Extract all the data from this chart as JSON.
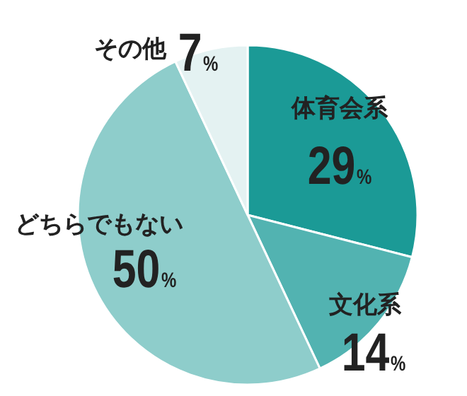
{
  "chart_data": {
    "type": "pie",
    "categories": [
      "体育会系",
      "文化系",
      "どちらでもない",
      "その他"
    ],
    "values": [
      29,
      14,
      50,
      7
    ],
    "value_labels": [
      "29%",
      "14%",
      "50%",
      "7%"
    ],
    "colors": [
      "#1b9a96",
      "#52b3b1",
      "#8ecdcb",
      "#e4f2f2"
    ]
  }
}
